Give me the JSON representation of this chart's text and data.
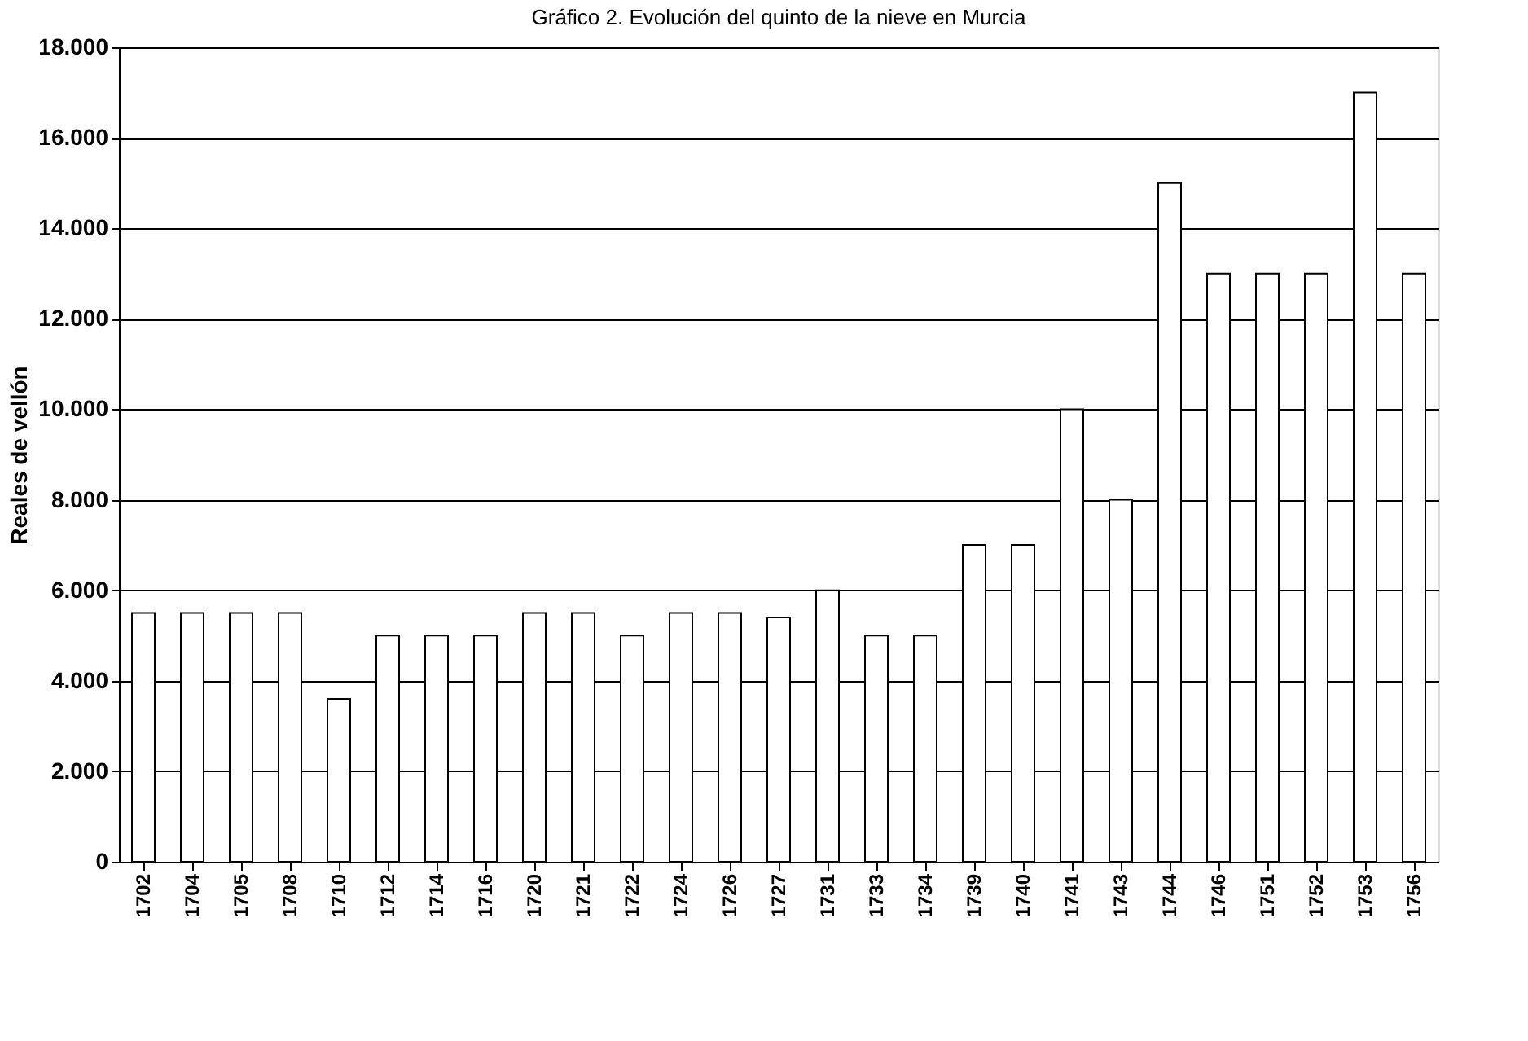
{
  "chart_data": {
    "type": "bar",
    "title": "Gráfico 2. Evolución del quinto de la nieve en Murcia",
    "ylabel": "Reales de vellón",
    "categories": [
      "1702",
      "1704",
      "1705",
      "1708",
      "1710",
      "1712",
      "1714",
      "1716",
      "1720",
      "1721",
      "1722",
      "1724",
      "1726",
      "1727",
      "1731",
      "1733",
      "1734",
      "1739",
      "1740",
      "1741",
      "1743",
      "1744",
      "1746",
      "1751",
      "1752",
      "1753",
      "1756"
    ],
    "values": [
      5500,
      5500,
      5500,
      5500,
      3600,
      5000,
      5000,
      5000,
      5500,
      5500,
      5000,
      5500,
      5500,
      5400,
      6000,
      5000,
      5000,
      7000,
      7000,
      10000,
      8000,
      15000,
      13000,
      13000,
      13000,
      17000,
      13000
    ],
    "color": "#ffffff",
    "ylim": [
      0,
      18000
    ],
    "yticks": [
      0,
      {
        "value": 2000,
        "label": "2.000"
      },
      {
        "value": 4000,
        "label": "4.000"
      },
      {
        "value": 6000,
        "label": "6.000"
      },
      {
        "value": 8000,
        "label": "8.000"
      },
      {
        "value": 10000,
        "label": "10.000"
      },
      {
        "value": 12000,
        "label": "12.000"
      },
      {
        "value": 14000,
        "label": "14.000"
      },
      {
        "value": 16000,
        "label": "16.000"
      },
      {
        "value": 18000,
        "label": "18.000"
      }
    ],
    "grid": "y"
  }
}
